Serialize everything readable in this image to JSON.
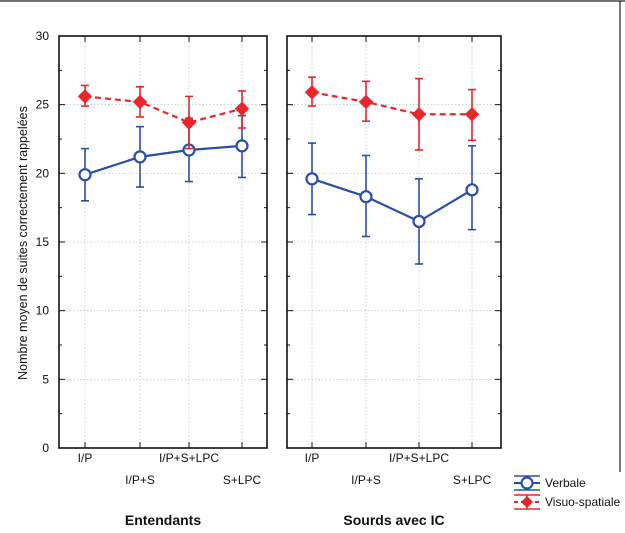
{
  "chart_data": {
    "type": "line",
    "ylabel": "Nombre moyen de suites correctement rappelées",
    "ylim": [
      0,
      30
    ],
    "yticks": [
      0,
      5,
      10,
      15,
      20,
      25,
      30
    ],
    "grid": true,
    "legend_position": "bottom-right",
    "categories": [
      "I/P",
      "I/P+S",
      "I/P+S+LPC",
      "S+LPC"
    ],
    "series_style": [
      {
        "name": "Verbale",
        "color": "#2a4fa8",
        "marker": "open-circle",
        "line": "solid"
      },
      {
        "name": "Visuo-spatiale",
        "color": "#e8272a",
        "marker": "diamond",
        "line": "dashed"
      }
    ],
    "panels": [
      {
        "title": "Entendants",
        "series": [
          {
            "name": "Verbale",
            "values": [
              19.9,
              21.2,
              21.7,
              22.0
            ],
            "err_low": [
              18.0,
              19.0,
              19.4,
              19.7
            ],
            "err_high": [
              21.8,
              23.4,
              24.0,
              24.2
            ]
          },
          {
            "name": "Visuo-spatiale",
            "values": [
              25.6,
              25.2,
              23.7,
              24.7
            ],
            "err_low": [
              24.9,
              24.1,
              21.8,
              23.3
            ],
            "err_high": [
              26.4,
              26.3,
              25.6,
              26.0
            ]
          }
        ]
      },
      {
        "title": "Sourds avec IC",
        "series": [
          {
            "name": "Verbale",
            "values": [
              19.6,
              18.3,
              16.5,
              18.8
            ],
            "err_low": [
              17.0,
              15.4,
              13.4,
              15.9
            ],
            "err_high": [
              22.2,
              21.3,
              19.6,
              22.0
            ]
          },
          {
            "name": "Visuo-spatiale",
            "values": [
              25.9,
              25.2,
              24.3,
              24.3
            ],
            "err_low": [
              24.9,
              23.8,
              21.7,
              22.4
            ],
            "err_high": [
              27.0,
              26.7,
              26.9,
              26.1
            ]
          }
        ]
      }
    ]
  }
}
